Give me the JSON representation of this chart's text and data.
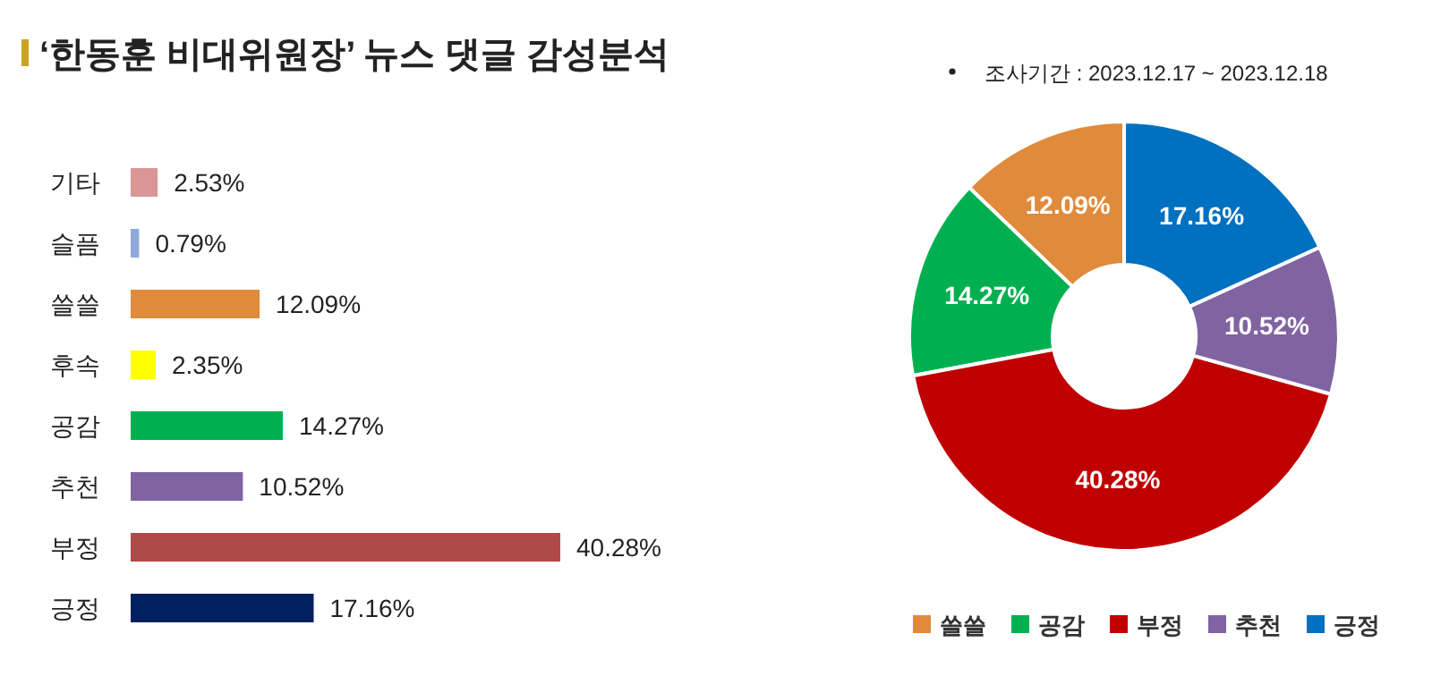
{
  "chart_data": [
    {
      "type": "bar",
      "orientation": "horizontal",
      "title": "‘한동훈 비대위원장’ 뉴스 댓글 감성분석",
      "categories": [
        "기타",
        "슬픔",
        "쓸쓸",
        "후속",
        "공감",
        "추천",
        "부정",
        "긍정"
      ],
      "values": [
        2.53,
        0.79,
        12.09,
        2.35,
        14.27,
        10.52,
        40.28,
        17.16
      ],
      "colors": [
        "#d99694",
        "#8eaadb",
        "#e08a3c",
        "#ffff00",
        "#00b050",
        "#8064a2",
        "#b04a48",
        "#002060"
      ],
      "value_labels": [
        "2.53%",
        "0.79%",
        "12.09%",
        "2.35%",
        "14.27%",
        "10.52%",
        "40.28%",
        "17.16%"
      ]
    },
    {
      "type": "donut",
      "annotations": [
        "조사기간 : 2023.12.17 ~ 2023.12.18"
      ],
      "categories": [
        "쓸쓸",
        "공감",
        "부정",
        "추천",
        "긍정"
      ],
      "values": [
        12.09,
        14.27,
        40.28,
        10.52,
        17.16
      ],
      "colors": [
        "#e08a3c",
        "#00b050",
        "#c00000",
        "#8064a2",
        "#0070c0"
      ],
      "value_labels": [
        "12.09%",
        "14.27%",
        "40.28%",
        "10.52%",
        "17.16%"
      ],
      "legend": "bottom"
    }
  ]
}
